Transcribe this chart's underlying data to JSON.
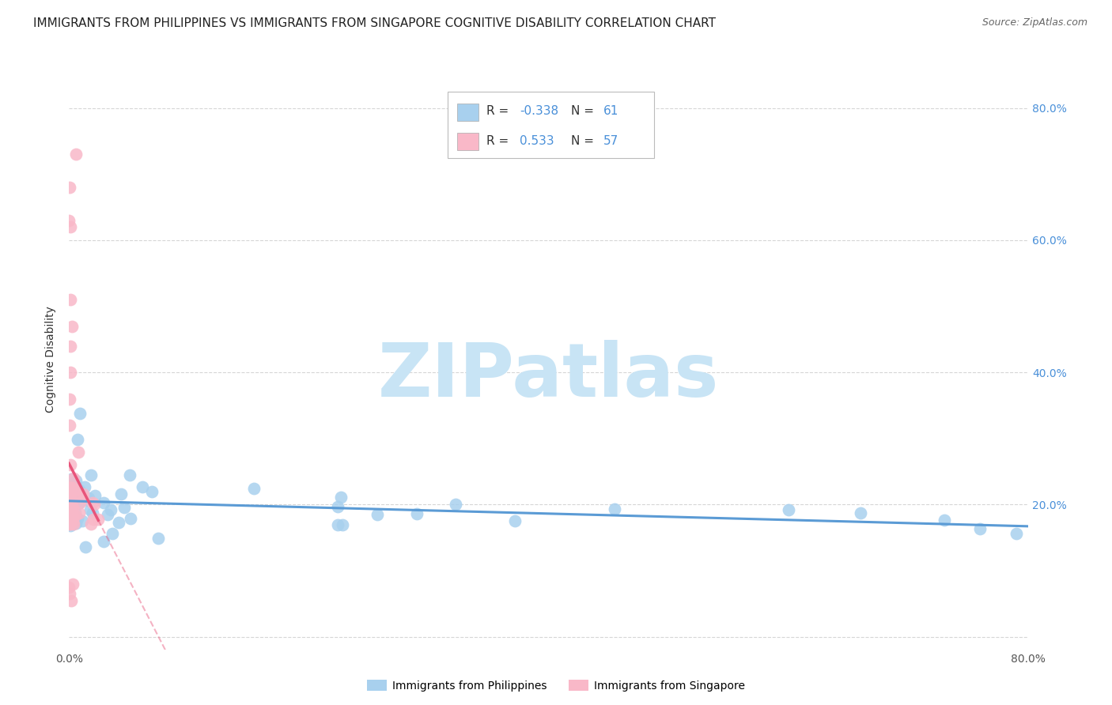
{
  "title": "IMMIGRANTS FROM PHILIPPINES VS IMMIGRANTS FROM SINGAPORE COGNITIVE DISABILITY CORRELATION CHART",
  "source": "Source: ZipAtlas.com",
  "ylabel": "Cognitive Disability",
  "watermark": "ZIPatlas",
  "series": [
    {
      "label": "Immigrants from Philippines",
      "R": -0.338,
      "N": 61,
      "r_str": "-0.338",
      "n_str": "61",
      "color_scatter": "#A8D0EE",
      "color_line": "#5B9BD5"
    },
    {
      "label": "Immigrants from Singapore",
      "R": 0.533,
      "N": 57,
      "r_str": "0.533",
      "n_str": "57",
      "color_scatter": "#F9B8C8",
      "color_line": "#E8547A"
    }
  ],
  "xlim": [
    0.0,
    0.8
  ],
  "ylim": [
    -0.02,
    0.86
  ],
  "xticks": [
    0.0,
    0.1,
    0.2,
    0.3,
    0.4,
    0.5,
    0.6,
    0.7,
    0.8
  ],
  "xticklabels": [
    "0.0%",
    "",
    "",
    "",
    "",
    "",
    "",
    "",
    "80.0%"
  ],
  "yticks_left": [],
  "yticks_right": [
    0.0,
    0.2,
    0.4,
    0.6,
    0.8
  ],
  "yticklabels_right": [
    "",
    "20.0%",
    "40.0%",
    "60.0%",
    "80.0%"
  ],
  "background_color": "#FFFFFF",
  "grid_color": "#CCCCCC",
  "title_fontsize": 11,
  "source_fontsize": 9,
  "watermark_color": "#C8E4F5",
  "watermark_fontsize": 68,
  "axis_label_color": "#4A90D9"
}
